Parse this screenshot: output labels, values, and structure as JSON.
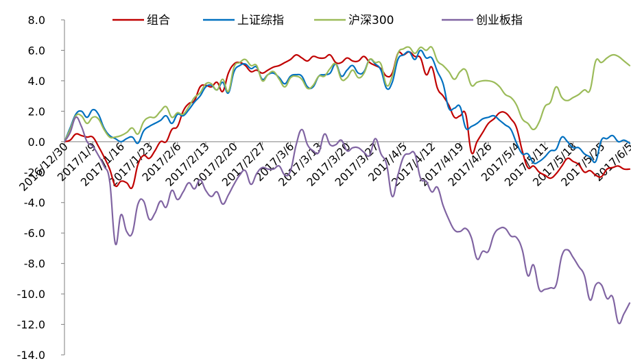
{
  "chart_data": {
    "type": "line",
    "title": "",
    "xlabel": "",
    "ylabel": "",
    "ylim": [
      -14.0,
      8.0
    ],
    "y_ticks": [
      "8.0",
      "6.0",
      "4.0",
      "2.0",
      "0.0",
      "-2.0",
      "-4.0",
      "-6.0",
      "-8.0",
      "-10.0",
      "-12.0",
      "-14.0"
    ],
    "x_ticks": [
      "2016/12/30",
      "2017/1/9",
      "2017/1/16",
      "2017/1/23",
      "2017/2/6",
      "2017/2/13",
      "2017/2/20",
      "2017/2/27",
      "2017/3/6",
      "2017/3/13",
      "2017/3/20",
      "2017/3/27",
      "2017/4/5",
      "2017/4/12",
      "2017/4/19",
      "2017/4/26",
      "2017/5/4",
      "2017/5/11",
      "2017/5/18",
      "2017/5/25",
      "2017/6/5"
    ],
    "legend_position": "top",
    "grid": false,
    "series": [
      {
        "name": "组合",
        "color": "#C00000",
        "values": [
          0.0,
          0.1,
          0.5,
          0.4,
          0.3,
          0.3,
          -0.3,
          -1.0,
          -1.8,
          -2.9,
          -2.6,
          -2.7,
          -3.0,
          -1.5,
          -0.9,
          -1.1,
          -0.6,
          0.0,
          0.0,
          0.8,
          1.0,
          2.0,
          2.5,
          2.7,
          3.6,
          3.7,
          3.6,
          3.9,
          3.3,
          4.5,
          5.1,
          5.2,
          5.0,
          4.6,
          4.7,
          4.5,
          4.7,
          4.9,
          5.0,
          5.2,
          5.4,
          5.7,
          5.5,
          5.3,
          5.6,
          5.5,
          5.5,
          5.7,
          5.2,
          5.2,
          5.5,
          5.3,
          5.3,
          5.6,
          5.2,
          5.0,
          4.8,
          4.3,
          4.5,
          5.8,
          5.7,
          5.9,
          5.6,
          5.5,
          4.4,
          4.9,
          3.5,
          3.0,
          2.4,
          1.6,
          1.7,
          1.8,
          -0.7,
          0.0,
          0.6,
          1.2,
          1.5,
          1.9,
          1.9,
          1.5,
          0.9,
          -0.6,
          -1.7,
          -1.6,
          -2.0,
          -2.2,
          -2.4,
          -2.1,
          -1.6,
          -1.1,
          -1.3,
          -1.5,
          -2.0,
          -1.9,
          -2.2,
          -2.3,
          -1.8,
          -1.7,
          -1.6,
          -1.8,
          -1.8
        ],
        "smooth": true
      },
      {
        "name": "上证综指",
        "color": "#0070C0",
        "values": [
          0.0,
          0.9,
          1.8,
          2.0,
          1.6,
          2.1,
          1.8,
          0.9,
          0.4,
          0.2,
          0.0,
          0.2,
          0.3,
          -0.1,
          0.7,
          1.0,
          1.2,
          1.4,
          1.7,
          1.2,
          1.8,
          1.7,
          2.1,
          2.6,
          3.0,
          3.6,
          3.7,
          3.4,
          3.9,
          3.2,
          4.6,
          5.0,
          5.1,
          4.8,
          4.9,
          4.1,
          4.4,
          4.5,
          4.2,
          3.8,
          4.3,
          4.4,
          4.3,
          3.6,
          3.6,
          4.3,
          4.4,
          4.5,
          5.1,
          4.3,
          4.7,
          5.0,
          4.5,
          4.6,
          5.4,
          5.1,
          4.7,
          3.5,
          3.9,
          5.4,
          5.7,
          5.9,
          5.4,
          6.0,
          5.5,
          5.5,
          4.6,
          3.8,
          2.2,
          2.2,
          2.3,
          0.9,
          1.0,
          1.2,
          1.5,
          1.6,
          1.7,
          1.4,
          1.1,
          0.8,
          -0.1,
          -0.8,
          -0.8,
          -1.4,
          -1.3,
          -1.0,
          -0.6,
          -0.5,
          0.3,
          0.0,
          -0.4,
          -0.4,
          -0.8,
          -1.0,
          -1.3,
          0.1,
          0.2,
          0.4,
          0.0,
          0.1,
          -0.1
        ],
        "smooth": true
      },
      {
        "name": "沪深300",
        "color": "#9BBB59",
        "values": [
          0.0,
          0.8,
          1.7,
          1.7,
          1.2,
          1.6,
          1.5,
          0.8,
          0.3,
          0.3,
          0.4,
          0.6,
          0.9,
          0.5,
          1.3,
          1.6,
          1.6,
          2.0,
          2.3,
          1.6,
          1.9,
          1.8,
          2.3,
          2.9,
          3.2,
          3.8,
          3.8,
          3.4,
          4.1,
          3.3,
          4.9,
          5.2,
          5.4,
          5.0,
          5.0,
          4.0,
          4.4,
          4.6,
          4.1,
          3.6,
          4.2,
          4.3,
          4.1,
          3.5,
          3.7,
          4.3,
          4.3,
          4.8,
          5.1,
          4.1,
          4.2,
          4.7,
          4.2,
          4.5,
          5.4,
          5.2,
          5.1,
          3.7,
          4.3,
          5.8,
          6.1,
          6.2,
          5.8,
          6.2,
          6.0,
          6.2,
          5.3,
          5.0,
          4.6,
          4.1,
          4.6,
          4.7,
          3.7,
          3.9,
          4.0,
          4.0,
          3.9,
          3.6,
          3.1,
          2.9,
          2.4,
          1.5,
          1.2,
          0.8,
          1.3,
          2.3,
          2.6,
          3.6,
          2.9,
          2.7,
          2.9,
          3.1,
          3.4,
          3.4,
          5.3,
          5.2,
          5.5,
          5.7,
          5.6,
          5.3,
          5.0
        ],
        "smooth": true
      },
      {
        "name": "创业板指",
        "color": "#8064A2",
        "values": [
          0.0,
          0.6,
          1.6,
          1.0,
          0.0,
          -0.3,
          -0.9,
          -1.6,
          -2.6,
          -6.7,
          -4.8,
          -5.9,
          -6.0,
          -4.1,
          -3.9,
          -5.1,
          -4.7,
          -3.9,
          -4.3,
          -3.2,
          -3.8,
          -3.3,
          -2.7,
          -3.1,
          -2.5,
          -3.2,
          -3.6,
          -3.3,
          -4.1,
          -3.5,
          -2.8,
          -2.2,
          -1.9,
          -2.8,
          -2.1,
          -1.7,
          -1.8,
          -1.8,
          -1.6,
          -2.2,
          -1.9,
          -0.2,
          0.8,
          -0.2,
          -0.6,
          -0.7,
          0.5,
          -0.2,
          -0.2,
          0.1,
          -0.6,
          -0.4,
          -0.4,
          -0.7,
          -0.9,
          0.2,
          -0.8,
          -1.5,
          -3.6,
          -2.2,
          -1.0,
          -0.8,
          -0.8,
          -2.4,
          -2.6,
          -3.3,
          -3.0,
          -4.2,
          -5.1,
          -5.8,
          -5.9,
          -5.7,
          -6.3,
          -7.7,
          -7.2,
          -7.2,
          -6.1,
          -5.7,
          -5.7,
          -6.2,
          -6.3,
          -7.1,
          -8.8,
          -8.1,
          -9.7,
          -9.7,
          -9.6,
          -9.4,
          -7.5,
          -7.1,
          -7.6,
          -8.2,
          -8.8,
          -10.4,
          -9.4,
          -9.4,
          -10.3,
          -10.2,
          -11.9,
          -11.3,
          -10.6
        ],
        "smooth": true
      }
    ]
  }
}
